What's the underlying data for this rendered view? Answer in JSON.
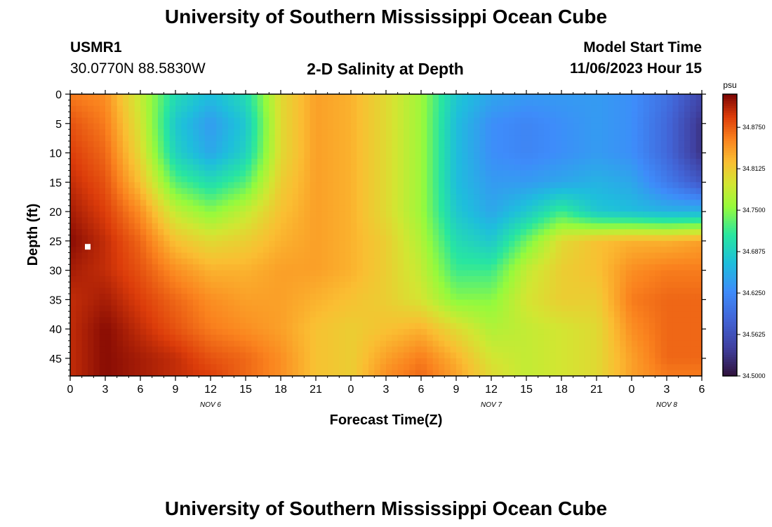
{
  "page": {
    "title": "University of Southern Mississippi Ocean Cube",
    "footer_title": "University of Southern Mississippi Ocean Cube",
    "station_id": "USMR1",
    "coords": "30.0770N  88.5830W",
    "plot_title": "2-D Salinity at Depth",
    "model_start_label": "Model Start Time",
    "model_start_value": "11/06/2023 Hour 15"
  },
  "chart_data": {
    "type": "heatmap",
    "xlabel": "Forecast Time(Z)",
    "ylabel": "Depth (ft)",
    "x_tick_labels": [
      "0",
      "3",
      "6",
      "9",
      "12",
      "15",
      "18",
      "21",
      "0",
      "3",
      "6",
      "9",
      "12",
      "15",
      "18",
      "21",
      "0",
      "3",
      "6"
    ],
    "x_range_hours": [
      0,
      54
    ],
    "day_labels": [
      {
        "label": "NOV 6",
        "hour": 12
      },
      {
        "label": "NOV 7",
        "hour": 36
      },
      {
        "label": "NOV 8",
        "hour": 51
      }
    ],
    "y_ticks": [
      0,
      5,
      10,
      15,
      20,
      25,
      30,
      35,
      40,
      45
    ],
    "y_range_ft": [
      0,
      48
    ],
    "y_inverted": true,
    "colorbar": {
      "unit": "psu",
      "min": 34.5,
      "max": 34.925,
      "tick_values": [
        34.875,
        34.8125,
        34.75,
        34.6875,
        34.625,
        34.5625,
        34.5
      ],
      "tick_labels": [
        "34.8750",
        "34.8125",
        "34.7500",
        "34.6875",
        "34.6250",
        "34.5625",
        "34.5000"
      ]
    },
    "salinity_field_psu": {
      "hours": [
        0,
        3,
        6,
        9,
        12,
        15,
        18,
        21,
        24,
        27,
        30,
        33,
        36,
        39,
        42,
        45,
        48,
        51,
        54
      ],
      "depths_ft": [
        0,
        5,
        10,
        15,
        20,
        25,
        30,
        35,
        40,
        45,
        48
      ],
      "values": [
        [
          34.86,
          34.85,
          34.78,
          34.7,
          34.67,
          34.7,
          34.8,
          34.84,
          34.83,
          34.8,
          34.76,
          34.68,
          34.65,
          34.64,
          34.64,
          34.64,
          34.63,
          34.6,
          34.55
        ],
        [
          34.88,
          34.86,
          34.79,
          34.68,
          34.64,
          34.68,
          34.8,
          34.84,
          34.83,
          34.8,
          34.76,
          34.67,
          34.63,
          34.62,
          34.63,
          34.64,
          34.63,
          34.59,
          34.53
        ],
        [
          34.89,
          34.87,
          34.8,
          34.69,
          34.65,
          34.69,
          34.8,
          34.84,
          34.83,
          34.8,
          34.76,
          34.67,
          34.63,
          34.62,
          34.63,
          34.64,
          34.63,
          34.59,
          34.53
        ],
        [
          34.9,
          34.88,
          34.82,
          34.73,
          34.7,
          34.73,
          34.81,
          34.84,
          34.83,
          34.8,
          34.76,
          34.67,
          34.64,
          34.64,
          34.65,
          34.66,
          34.65,
          34.61,
          34.57
        ],
        [
          34.91,
          34.89,
          34.85,
          34.78,
          34.75,
          34.78,
          34.82,
          34.84,
          34.83,
          34.8,
          34.76,
          34.68,
          34.65,
          34.68,
          34.72,
          34.68,
          34.67,
          34.66,
          34.66
        ],
        [
          34.92,
          34.9,
          34.87,
          34.82,
          34.8,
          34.81,
          34.83,
          34.84,
          34.83,
          34.81,
          34.77,
          34.7,
          34.68,
          34.74,
          34.8,
          34.82,
          34.83,
          34.83,
          34.84
        ],
        [
          34.91,
          34.9,
          34.88,
          34.85,
          34.83,
          34.83,
          34.84,
          34.84,
          34.83,
          34.81,
          34.78,
          34.72,
          34.72,
          34.78,
          34.81,
          34.82,
          34.85,
          34.86,
          34.86
        ],
        [
          34.9,
          34.91,
          34.89,
          34.87,
          34.85,
          34.84,
          34.84,
          34.83,
          34.82,
          34.81,
          34.79,
          34.75,
          34.75,
          34.79,
          34.81,
          34.81,
          34.86,
          34.87,
          34.87
        ],
        [
          34.9,
          34.92,
          34.9,
          34.88,
          34.86,
          34.85,
          34.84,
          34.82,
          34.81,
          34.82,
          34.83,
          34.8,
          34.77,
          34.78,
          34.79,
          34.8,
          34.85,
          34.87,
          34.87
        ],
        [
          34.9,
          34.92,
          34.91,
          34.9,
          34.88,
          34.87,
          34.85,
          34.82,
          34.81,
          34.84,
          34.86,
          34.83,
          34.79,
          34.78,
          34.79,
          34.8,
          34.84,
          34.87,
          34.87
        ],
        [
          34.9,
          34.92,
          34.91,
          34.9,
          34.89,
          34.87,
          34.85,
          34.82,
          34.81,
          34.85,
          34.87,
          34.84,
          34.8,
          34.78,
          34.79,
          34.8,
          34.84,
          34.86,
          34.86
        ]
      ]
    },
    "station_marker": {
      "hour": 1.5,
      "depth_ft": 26
    }
  }
}
